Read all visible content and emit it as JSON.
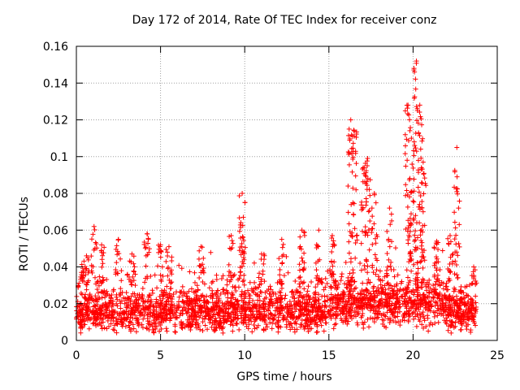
{
  "chart_data": {
    "type": "scatter",
    "title": "Day 172 of 2014, Rate Of TEC Index for receiver conz",
    "xlabel": "GPS time / hours",
    "ylabel": "ROTI / TECUs",
    "xlim": [
      0,
      25
    ],
    "ylim": [
      0,
      0.16
    ],
    "xticks": [
      0,
      5,
      10,
      15,
      20,
      25
    ],
    "xtick_labels": [
      "0",
      "5",
      "10",
      "15",
      "20",
      "25"
    ],
    "yticks": [
      0,
      0.02,
      0.04,
      0.06,
      0.08,
      0.1,
      0.12,
      0.14,
      0.16
    ],
    "ytick_labels": [
      "0",
      "0.02",
      "0.04",
      "0.06",
      "0.08",
      "0.1",
      "0.12",
      "0.14",
      "0.16"
    ],
    "grid": true,
    "marker": "+",
    "color": "#ff0000",
    "x_data_range": [
      0,
      23.8
    ],
    "peaks": [
      {
        "x": 0.3,
        "y": 0.037
      },
      {
        "x": 0.6,
        "y": 0.046
      },
      {
        "x": 1.05,
        "y": 0.062
      },
      {
        "x": 1.5,
        "y": 0.052
      },
      {
        "x": 2.5,
        "y": 0.055
      },
      {
        "x": 3.3,
        "y": 0.047
      },
      {
        "x": 4.2,
        "y": 0.058
      },
      {
        "x": 5.0,
        "y": 0.052
      },
      {
        "x": 5.5,
        "y": 0.051
      },
      {
        "x": 7.4,
        "y": 0.051
      },
      {
        "x": 9.2,
        "y": 0.057
      },
      {
        "x": 9.85,
        "y": 0.08
      },
      {
        "x": 9.9,
        "y": 0.056
      },
      {
        "x": 11.0,
        "y": 0.047
      },
      {
        "x": 12.2,
        "y": 0.055
      },
      {
        "x": 13.4,
        "y": 0.06
      },
      {
        "x": 14.4,
        "y": 0.06
      },
      {
        "x": 15.2,
        "y": 0.057
      },
      {
        "x": 16.3,
        "y": 0.12
      },
      {
        "x": 16.5,
        "y": 0.114
      },
      {
        "x": 17.1,
        "y": 0.094
      },
      {
        "x": 17.3,
        "y": 0.099
      },
      {
        "x": 17.7,
        "y": 0.08
      },
      {
        "x": 18.6,
        "y": 0.072
      },
      {
        "x": 19.7,
        "y": 0.128
      },
      {
        "x": 19.9,
        "y": 0.11
      },
      {
        "x": 20.2,
        "y": 0.152
      },
      {
        "x": 20.4,
        "y": 0.128
      },
      {
        "x": 20.6,
        "y": 0.097
      },
      {
        "x": 21.4,
        "y": 0.054
      },
      {
        "x": 22.2,
        "y": 0.057
      },
      {
        "x": 22.6,
        "y": 0.105
      },
      {
        "x": 23.6,
        "y": 0.04
      }
    ]
  }
}
